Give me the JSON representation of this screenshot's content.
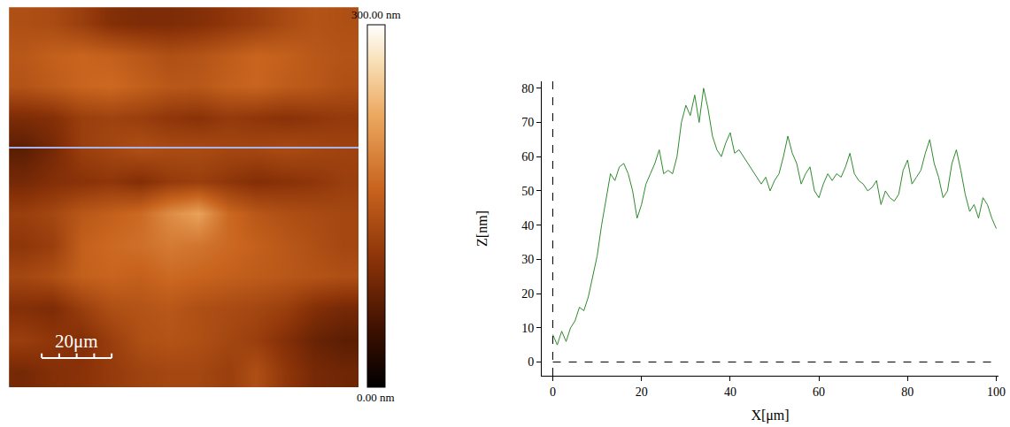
{
  "chart_data": [
    {
      "type": "heatmap",
      "x": [
        4.2,
        12.5,
        20.8,
        29.2,
        37.5,
        45.8,
        54.2,
        62.5,
        70.8,
        79.2,
        87.5,
        95.8
      ],
      "y": [
        4.2,
        12.5,
        20.8,
        29.2,
        37.5,
        45.8,
        54.2,
        62.5,
        70.8,
        79.2,
        87.5,
        95.8
      ],
      "cells": [
        [
          90,
          100,
          105,
          115,
          125,
          130,
          130,
          120,
          140,
          110,
          90,
          85
        ],
        [
          120,
          110,
          100,
          120,
          140,
          145,
          140,
          130,
          120,
          100,
          80,
          70
        ],
        [
          100,
          95,
          120,
          140,
          145,
          150,
          140,
          135,
          130,
          120,
          100,
          90
        ],
        [
          130,
          140,
          160,
          165,
          160,
          170,
          165,
          160,
          155,
          150,
          145,
          140
        ],
        [
          110,
          120,
          160,
          170,
          175,
          185,
          180,
          170,
          160,
          150,
          140,
          130
        ],
        [
          120,
          130,
          150,
          160,
          170,
          200,
          220,
          170,
          150,
          140,
          135,
          130
        ],
        [
          90,
          100,
          105,
          110,
          100,
          115,
          120,
          110,
          100,
          105,
          110,
          120
        ],
        [
          70,
          90,
          120,
          130,
          140,
          135,
          135,
          130,
          130,
          135,
          130,
          125
        ],
        [
          95,
          100,
          120,
          125,
          120,
          110,
          105,
          115,
          110,
          105,
          110,
          115
        ],
        [
          145,
          155,
          165,
          170,
          160,
          150,
          150,
          160,
          165,
          155,
          150,
          140
        ],
        [
          150,
          160,
          165,
          160,
          150,
          140,
          145,
          155,
          165,
          160,
          150,
          145
        ],
        [
          140,
          135,
          120,
          100,
          95,
          95,
          100,
          110,
          120,
          135,
          145,
          140
        ]
      ],
      "xlim": [
        0,
        100
      ],
      "ylim": [
        0,
        100
      ],
      "tick_labels": false,
      "colorbar": {
        "range": [
          0,
          300
        ],
        "ticks": [
          {
            "value": 0,
            "label": "0.00 nm"
          },
          {
            "value": 300,
            "label": "300.00 nm"
          }
        ]
      },
      "scale_bar": {
        "length": 20,
        "label": "20μm"
      },
      "profile_y": 63
    },
    {
      "type": "line",
      "x": [
        0,
        1,
        2,
        3,
        4,
        5,
        6,
        7,
        8,
        9,
        10,
        11,
        12,
        13,
        14,
        15,
        16,
        17,
        18,
        19,
        20,
        21,
        22,
        23,
        24,
        25,
        26,
        27,
        28,
        29,
        30,
        31,
        32,
        33,
        34,
        35,
        36,
        37,
        38,
        39,
        40,
        41,
        42,
        43,
        44,
        45,
        46,
        47,
        48,
        49,
        50,
        51,
        52,
        53,
        54,
        55,
        56,
        57,
        58,
        59,
        60,
        61,
        62,
        63,
        64,
        65,
        66,
        67,
        68,
        69,
        70,
        71,
        72,
        73,
        74,
        75,
        76,
        77,
        78,
        79,
        80,
        81,
        82,
        83,
        84,
        85,
        86,
        87,
        88,
        89,
        90,
        91,
        92,
        93,
        94,
        95,
        96,
        97,
        98,
        99,
        100
      ],
      "values": [
        8,
        5,
        9,
        6,
        10,
        12,
        16,
        15,
        19,
        25,
        31,
        40,
        47,
        55,
        53,
        57,
        58,
        55,
        50,
        42,
        46,
        52,
        55,
        58,
        62,
        55,
        56,
        55,
        60,
        70,
        75,
        72,
        78,
        70,
        80,
        74,
        66,
        62,
        60,
        64,
        67,
        61,
        62,
        60,
        58,
        56,
        54,
        52,
        54,
        50,
        53,
        55,
        60,
        66,
        61,
        58,
        52,
        55,
        57,
        50,
        48,
        52,
        55,
        53,
        55,
        54,
        57,
        61,
        55,
        53,
        52,
        50,
        51,
        53,
        46,
        50,
        48,
        47,
        49,
        56,
        59,
        52,
        54,
        56,
        61,
        65,
        58,
        54,
        48,
        50,
        58,
        62,
        56,
        49,
        44,
        46,
        42,
        48,
        46,
        42,
        39
      ],
      "color": "#2e8b2e",
      "xlabel": "X[μm]",
      "ylabel": "Z[nm]",
      "xlim": [
        -2.5,
        100.5
      ],
      "ylim": [
        -4,
        82
      ],
      "xticks": [
        0,
        20,
        40,
        60,
        80,
        100
      ],
      "yticks": [
        0,
        10,
        20,
        30,
        40,
        50,
        60,
        70,
        80
      ]
    }
  ]
}
